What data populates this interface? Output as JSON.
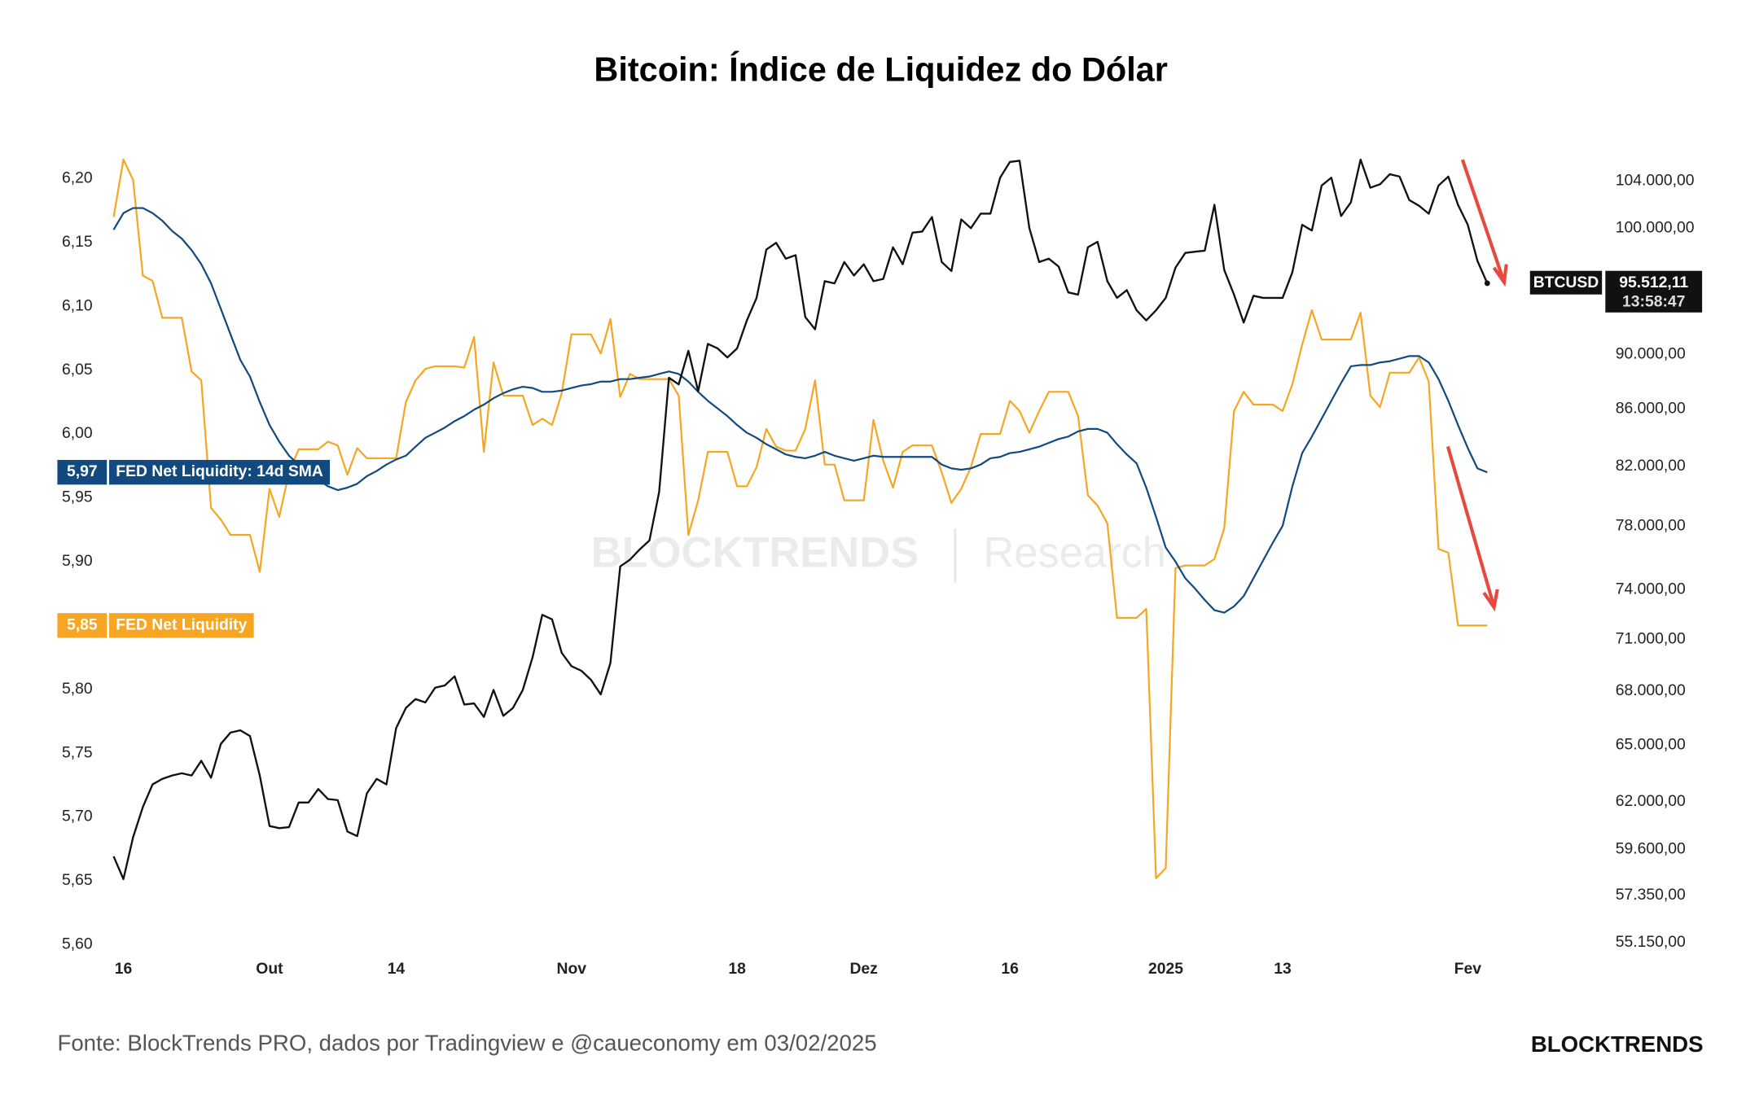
{
  "chart_data": {
    "type": "line",
    "title": "Bitcoin: Índice de Liquidez do Dólar",
    "watermark": [
      "BLOCKTRENDS",
      "Research"
    ],
    "source": "Fonte: BlockTrends PRO, dados por Tradingview e @caueconomy em 03/02/2025",
    "brand": "BLOCKTRENDS",
    "categories": [
      null,
      "16",
      null,
      null,
      null,
      null,
      null,
      null,
      null,
      null,
      null,
      null,
      null,
      null,
      null,
      null,
      "Out",
      null,
      null,
      null,
      null,
      null,
      null,
      null,
      null,
      null,
      null,
      null,
      null,
      "14",
      null,
      null,
      null,
      null,
      null,
      null,
      null,
      null,
      null,
      null,
      null,
      null,
      null,
      null,
      null,
      null,
      null,
      "Nov",
      null,
      null,
      null,
      null,
      null,
      null,
      null,
      null,
      null,
      null,
      null,
      null,
      null,
      null,
      null,
      null,
      "18",
      null,
      null,
      null,
      null,
      null,
      null,
      null,
      null,
      null,
      null,
      null,
      null,
      "Dez",
      null,
      null,
      null,
      null,
      null,
      null,
      null,
      null,
      null,
      null,
      null,
      null,
      null,
      null,
      "16",
      null,
      null,
      null,
      null,
      null,
      null,
      null,
      null,
      null,
      null,
      null,
      null,
      null,
      null,
      null,
      "2025",
      null,
      null,
      null,
      null,
      null,
      null,
      null,
      null,
      null,
      null,
      null,
      "13",
      null,
      null,
      null,
      null,
      null,
      null,
      null,
      null,
      null,
      null,
      null,
      null,
      null,
      null,
      null,
      null,
      null,
      null,
      "Fev",
      null,
      null
    ],
    "ylim": [
      5.6,
      6.221
    ],
    "yticks": [
      {
        "value": 5.6,
        "label": "5,60"
      },
      {
        "value": 5.65,
        "label": "5,65"
      },
      {
        "value": 5.7,
        "label": "5,70"
      },
      {
        "value": 5.75,
        "label": "5,75"
      },
      {
        "value": 5.8,
        "label": "5,80"
      },
      {
        "value": 5.85,
        "label": "5,85"
      },
      {
        "value": 5.9,
        "label": "5,90"
      },
      {
        "value": 5.95,
        "label": "5,95"
      },
      {
        "value": 6.0,
        "label": "6,00"
      },
      {
        "value": 6.05,
        "label": "6,05"
      },
      {
        "value": 6.1,
        "label": "6,10"
      },
      {
        "value": 6.15,
        "label": "6,15"
      },
      {
        "value": 6.2,
        "label": "6,20"
      }
    ],
    "y2lim": [
      55050,
      106560
    ],
    "y2log": true,
    "y2ticks": [
      {
        "value": 55150,
        "label": "55.150,00"
      },
      {
        "value": 57350,
        "label": "57.350,00"
      },
      {
        "value": 59600,
        "label": "59.600,00"
      },
      {
        "value": 62000,
        "label": "62.000,00"
      },
      {
        "value": 65000,
        "label": "65.000,00"
      },
      {
        "value": 68000,
        "label": "68.000,00"
      },
      {
        "value": 71000,
        "label": "71.000,00"
      },
      {
        "value": 74000,
        "label": "74.000,00"
      },
      {
        "value": 78000,
        "label": "78.000,00"
      },
      {
        "value": 82000,
        "label": "82.000,00"
      },
      {
        "value": 86000,
        "label": "86.000,00"
      },
      {
        "value": 90000,
        "label": "90.000,00"
      },
      {
        "value": 100000,
        "label": "100.000,00"
      },
      {
        "value": 104000,
        "label": "104.000,00"
      }
    ],
    "grid": false,
    "series": [
      {
        "name": "FED Net Liquidity",
        "color": "#f6a623",
        "value_labels": {
          "141": "5,85"
        },
        "values": [
          6.17,
          6.215,
          6.199,
          6.124,
          6.12,
          6.091,
          6.091,
          6.091,
          6.049,
          6.042,
          5.942,
          5.933,
          5.921,
          5.921,
          5.921,
          5.892,
          5.957,
          5.935,
          5.97,
          5.988,
          5.988,
          5.988,
          5.994,
          5.991,
          5.968,
          5.989,
          5.981,
          5.981,
          5.981,
          5.981,
          6.025,
          6.042,
          6.051,
          6.053,
          6.053,
          6.053,
          6.052,
          6.076,
          5.986,
          6.056,
          6.03,
          6.03,
          6.03,
          6.007,
          6.012,
          6.007,
          6.032,
          6.078,
          6.078,
          6.078,
          6.063,
          6.09,
          6.029,
          6.047,
          6.043,
          6.043,
          6.043,
          6.043,
          6.03,
          5.921,
          5.948,
          5.986,
          5.986,
          5.986,
          5.959,
          5.959,
          5.974,
          6.004,
          5.99,
          5.987,
          5.987,
          6.004,
          6.042,
          5.976,
          5.976,
          5.948,
          5.948,
          5.948,
          6.011,
          5.979,
          5.958,
          5.986,
          5.991,
          5.991,
          5.991,
          5.97,
          5.946,
          5.957,
          5.974,
          6.0,
          6.0,
          6.0,
          6.026,
          6.018,
          6.001,
          6.018,
          6.033,
          6.033,
          6.033,
          6.014,
          5.952,
          5.944,
          5.93,
          5.856,
          5.856,
          5.856,
          5.863,
          5.652,
          5.66,
          5.895,
          5.897,
          5.897,
          5.897,
          5.902,
          5.926,
          6.018,
          6.033,
          6.023,
          6.023,
          6.023,
          6.018,
          6.039,
          6.07,
          6.097,
          6.074,
          6.074,
          6.074,
          6.074,
          6.095,
          6.03,
          6.021,
          6.048,
          6.048,
          6.048,
          6.06,
          6.041,
          5.91,
          5.907,
          5.85,
          5.85,
          5.85,
          5.85
        ]
      },
      {
        "name": "FED Net Liquidity: 14d SMA",
        "color": "#124a80",
        "value_labels": {
          "141": "5,97"
        },
        "values": [
          6.16,
          6.173,
          6.177,
          6.177,
          6.173,
          6.167,
          6.159,
          6.153,
          6.144,
          6.133,
          6.118,
          6.098,
          6.078,
          6.058,
          6.045,
          6.025,
          6.007,
          5.994,
          5.983,
          5.976,
          5.97,
          5.964,
          5.959,
          5.956,
          5.958,
          5.961,
          5.967,
          5.971,
          5.976,
          5.98,
          5.983,
          5.99,
          5.997,
          6.001,
          6.005,
          6.01,
          6.014,
          6.019,
          6.023,
          6.028,
          6.032,
          6.035,
          6.037,
          6.036,
          6.033,
          6.033,
          6.034,
          6.036,
          6.038,
          6.039,
          6.041,
          6.041,
          6.043,
          6.043,
          6.044,
          6.045,
          6.047,
          6.049,
          6.047,
          6.041,
          6.033,
          6.026,
          6.02,
          6.014,
          6.007,
          6.001,
          5.997,
          5.992,
          5.988,
          5.984,
          5.982,
          5.981,
          5.983,
          5.986,
          5.983,
          5.981,
          5.979,
          5.981,
          5.983,
          5.982,
          5.982,
          5.982,
          5.982,
          5.982,
          5.982,
          5.976,
          5.973,
          5.972,
          5.973,
          5.976,
          5.981,
          5.982,
          5.985,
          5.986,
          5.988,
          5.99,
          5.993,
          5.996,
          5.998,
          6.002,
          6.004,
          6.004,
          6.001,
          5.992,
          5.984,
          5.977,
          5.958,
          5.935,
          5.911,
          5.9,
          5.887,
          5.879,
          5.87,
          5.862,
          5.86,
          5.865,
          5.873,
          5.887,
          5.901,
          5.915,
          5.928,
          5.959,
          5.985,
          5.998,
          6.012,
          6.026,
          6.04,
          6.053,
          6.054,
          6.054,
          6.056,
          6.057,
          6.059,
          6.061,
          6.061,
          6.056,
          6.043,
          6.026,
          6.007,
          5.989,
          5.973,
          5.97
        ]
      },
      {
        "name": "BTCUSD",
        "color": "#111111",
        "axis": "y2",
        "value_labels": {
          "141": "95.512,11"
        },
        "time_label": "13:58:47",
        "values": [
          59250,
          58140,
          60200,
          61740,
          62910,
          63200,
          63380,
          63500,
          63380,
          64160,
          63260,
          65070,
          65690,
          65810,
          65500,
          63380,
          60770,
          60660,
          60710,
          61970,
          61970,
          62670,
          62150,
          62090,
          60490,
          60260,
          62440,
          63200,
          62910,
          65930,
          67050,
          67550,
          67360,
          68190,
          68320,
          68840,
          67240,
          67300,
          66550,
          68060,
          66610,
          67050,
          68060,
          69940,
          72460,
          72190,
          70200,
          69420,
          69160,
          68640,
          67810,
          69610,
          75440,
          75870,
          76510,
          77090,
          80260,
          88280,
          87790,
          90290,
          87300,
          90800,
          90460,
          89780,
          90460,
          92600,
          94350,
          98230,
          98780,
          97490,
          97770,
          92860,
          91920,
          95680,
          95500,
          97210,
          96130,
          97030,
          95680,
          95860,
          98410,
          97030,
          99620,
          99710,
          100920,
          97210,
          96490,
          100730,
          99990,
          101210,
          101210,
          104290,
          105670,
          105770,
          99990,
          97210,
          97490,
          96850,
          94780,
          94610,
          98410,
          98870,
          95680,
          94350,
          94960,
          93380,
          92600,
          93380,
          94350,
          96760,
          97950,
          98050,
          98140,
          101960,
          96580,
          94610,
          92430,
          94520,
          94350,
          94350,
          94350,
          96400,
          100270,
          99800,
          103610,
          104290,
          101010,
          102170,
          105870,
          103420,
          103710,
          104590,
          104390,
          102360,
          101870,
          101210,
          103610,
          104390,
          101960,
          100270,
          97300,
          95512.11
        ]
      }
    ]
  }
}
